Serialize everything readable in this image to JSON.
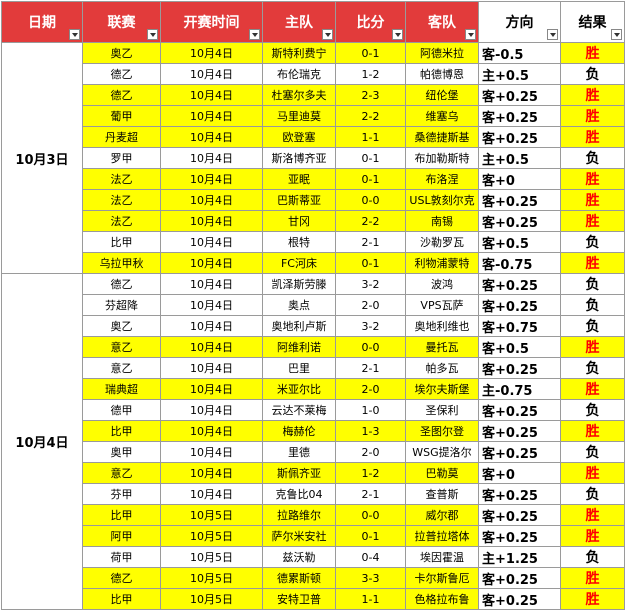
{
  "header": [
    "日期",
    "联赛",
    "开赛时间",
    "主队",
    "比分",
    "客队",
    "方向",
    "结果"
  ],
  "groups": [
    {
      "date": "10月3日",
      "rows": [
        {
          "cells": [
            "奥乙",
            "10月4日",
            "斯特利费宁",
            "0-1",
            "阿德米拉",
            "客-0.5",
            "胜"
          ],
          "fill": "#ffff00",
          "result_color": "#ff0000"
        },
        {
          "cells": [
            "德乙",
            "10月4日",
            "布伦瑞克",
            "1-2",
            "帕德博恩",
            "主+0.5",
            "负"
          ],
          "fill": "#ffffff",
          "result_color": "#000000"
        },
        {
          "cells": [
            "德乙",
            "10月4日",
            "杜塞尔多夫",
            "2-3",
            "纽伦堡",
            "客+0.25",
            "胜"
          ],
          "fill": "#ffff00",
          "result_color": "#ff0000"
        },
        {
          "cells": [
            "葡甲",
            "10月4日",
            "马里迪莫",
            "2-2",
            "维塞乌",
            "客+0.25",
            "胜"
          ],
          "fill": "#ffff00",
          "result_color": "#ff0000"
        },
        {
          "cells": [
            "丹麦超",
            "10月4日",
            "欧登塞",
            "1-1",
            "桑德捷斯基",
            "客+0.25",
            "胜"
          ],
          "fill": "#ffff00",
          "result_color": "#ff0000"
        },
        {
          "cells": [
            "罗甲",
            "10月4日",
            "斯洛博齐亚",
            "0-1",
            "布加勒斯特",
            "主+0.5",
            "负"
          ],
          "fill": "#ffffff",
          "result_color": "#000000"
        },
        {
          "cells": [
            "法乙",
            "10月4日",
            "亚眠",
            "0-1",
            "布洛涅",
            "客+0",
            "胜"
          ],
          "fill": "#ffff00",
          "result_color": "#ff0000"
        },
        {
          "cells": [
            "法乙",
            "10月4日",
            "巴斯蒂亚",
            "0-0",
            "USL敦刻尔克",
            "客+0.25",
            "胜"
          ],
          "fill": "#ffff00",
          "result_color": "#ff0000"
        },
        {
          "cells": [
            "法乙",
            "10月4日",
            "甘冈",
            "2-2",
            "南锡",
            "客+0.25",
            "胜"
          ],
          "fill": "#ffff00",
          "result_color": "#ff0000"
        },
        {
          "cells": [
            "比甲",
            "10月4日",
            "根特",
            "2-1",
            "沙勒罗瓦",
            "客+0.5",
            "负"
          ],
          "fill": "#ffffff",
          "result_color": "#000000"
        },
        {
          "cells": [
            "乌拉甲秋",
            "10月4日",
            "FC河床",
            "0-1",
            "利物浦蒙特",
            "客-0.75",
            "胜"
          ],
          "fill": "#ffff00",
          "result_color": "#ff0000"
        }
      ]
    },
    {
      "date": "10月4日",
      "rows": [
        {
          "cells": [
            "德乙",
            "10月4日",
            "凯泽斯劳滕",
            "3-2",
            "波鸿",
            "客+0.25",
            "负"
          ],
          "fill": "#ffffff",
          "result_color": "#000000"
        },
        {
          "cells": [
            "芬超降",
            "10月4日",
            "奥点",
            "2-0",
            "VPS瓦萨",
            "客+0.25",
            "负"
          ],
          "fill": "#ffffff",
          "result_color": "#000000"
        },
        {
          "cells": [
            "奥乙",
            "10月4日",
            "奥地利卢斯",
            "3-2",
            "奥地利维也",
            "客+0.75",
            "负"
          ],
          "fill": "#ffffff",
          "result_color": "#000000"
        },
        {
          "cells": [
            "意乙",
            "10月4日",
            "阿维利诺",
            "0-0",
            "曼托瓦",
            "客+0.5",
            "胜"
          ],
          "fill": "#ffff00",
          "result_color": "#ff0000"
        },
        {
          "cells": [
            "意乙",
            "10月4日",
            "巴里",
            "2-1",
            "帕多瓦",
            "客+0.25",
            "负"
          ],
          "fill": "#ffffff",
          "result_color": "#000000"
        },
        {
          "cells": [
            "瑞典超",
            "10月4日",
            "米亚尔比",
            "2-0",
            "埃尔夫斯堡",
            "主-0.75",
            "胜"
          ],
          "fill": "#ffff00",
          "result_color": "#ff0000"
        },
        {
          "cells": [
            "德甲",
            "10月4日",
            "云达不莱梅",
            "1-0",
            "圣保利",
            "客+0.25",
            "负"
          ],
          "fill": "#ffffff",
          "result_color": "#000000"
        },
        {
          "cells": [
            "比甲",
            "10月4日",
            "梅赫伦",
            "1-3",
            "圣图尔登",
            "客+0.25",
            "胜"
          ],
          "fill": "#ffff00",
          "result_color": "#ff0000"
        },
        {
          "cells": [
            "奥甲",
            "10月4日",
            "里德",
            "2-0",
            "WSG提洛尔",
            "客+0.25",
            "负"
          ],
          "fill": "#ffffff",
          "result_color": "#000000"
        },
        {
          "cells": [
            "意乙",
            "10月4日",
            "斯佩齐亚",
            "1-2",
            "巴勒莫",
            "客+0",
            "胜"
          ],
          "fill": "#ffff00",
          "result_color": "#ff0000"
        },
        {
          "cells": [
            "芬甲",
            "10月4日",
            "克鲁比04",
            "2-1",
            "查普斯",
            "客+0.25",
            "负"
          ],
          "fill": "#ffffff",
          "result_color": "#000000"
        },
        {
          "cells": [
            "比甲",
            "10月5日",
            "拉路维尔",
            "0-0",
            "威尔郡",
            "客+0.25",
            "胜"
          ],
          "fill": "#ffff00",
          "result_color": "#ff0000"
        },
        {
          "cells": [
            "阿甲",
            "10月5日",
            "萨尔米安社",
            "0-1",
            "拉普拉塔体",
            "客+0.25",
            "胜"
          ],
          "fill": "#ffff00",
          "result_color": "#ff0000"
        },
        {
          "cells": [
            "荷甲",
            "10月5日",
            "兹沃勒",
            "0-4",
            "埃因霍温",
            "主+1.25",
            "负"
          ],
          "fill": "#ffffff",
          "result_color": "#000000"
        },
        {
          "cells": [
            "德乙",
            "10月5日",
            "德累斯顿",
            "3-3",
            "卡尔斯鲁厄",
            "客+0.25",
            "胜"
          ],
          "fill": "#ffff00",
          "result_color": "#ff0000"
        },
        {
          "cells": [
            "比甲",
            "10月5日",
            "安特卫普",
            "1-1",
            "色格拉布鲁",
            "客+0.25",
            "胜"
          ],
          "fill": "#ffff00",
          "result_color": "#ff0000"
        }
      ]
    }
  ]
}
